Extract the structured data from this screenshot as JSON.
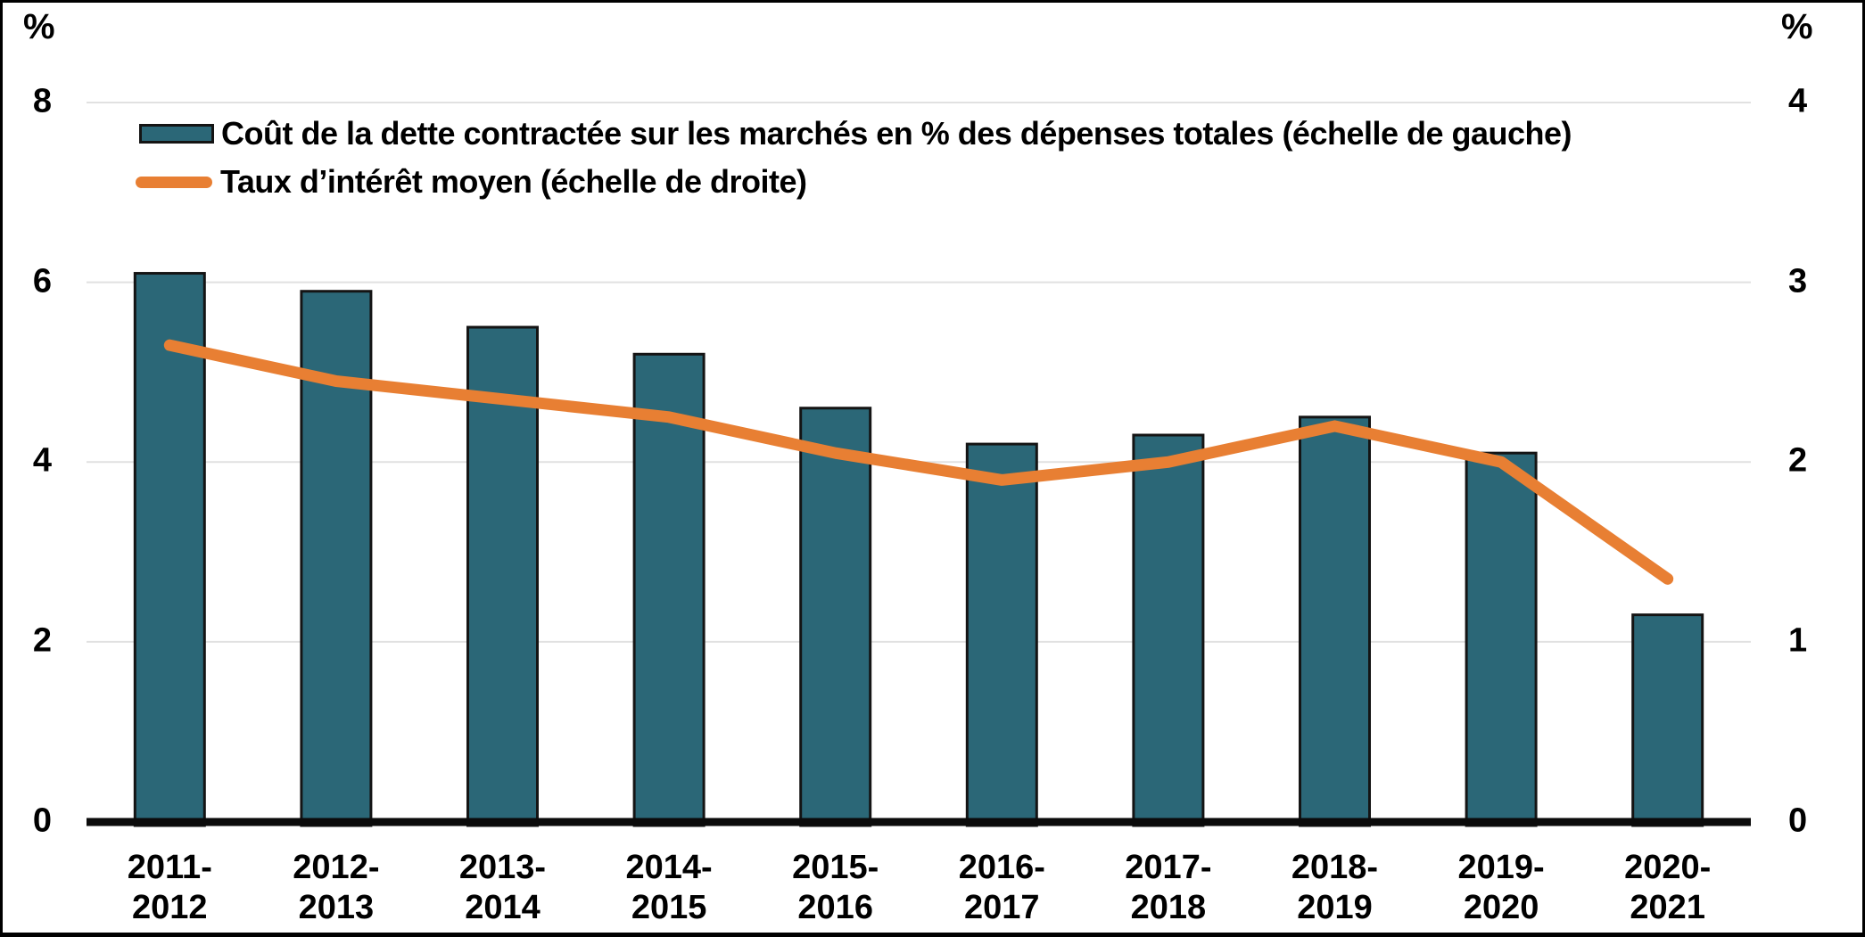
{
  "page": {
    "background": "#FFFFFF",
    "border_color": "#000000"
  },
  "chart": {
    "left_axis": {
      "unit": "%"
    },
    "right_axis": {
      "unit": "%"
    },
    "colors": {
      "bar_fill": "#2B6777",
      "bar_border": "#141414",
      "line": "#E87F33",
      "gridline": "#E1E1E1",
      "axis_line": "#0B0B0B",
      "text": "#000000"
    }
  },
  "chart_data": {
    "type": "combo-bar-line",
    "categories": [
      "2011-2012",
      "2012-2013",
      "2013-2014",
      "2014-2015",
      "2015-2016",
      "2016-2017",
      "2017-2018",
      "2018-2019",
      "2019-2020",
      "2020-2021"
    ],
    "series": [
      {
        "name": "Coût de la dette contractée sur les marchés en % des dépenses totales (échelle de gauche)",
        "type": "bar",
        "axis": "left",
        "values": [
          6.1,
          5.9,
          5.5,
          5.2,
          4.6,
          4.2,
          4.3,
          4.5,
          4.1,
          2.3
        ]
      },
      {
        "name": "Taux d’intérêt moyen (échelle de droite)",
        "type": "line",
        "axis": "right",
        "values": [
          2.65,
          2.45,
          2.35,
          2.25,
          2.05,
          1.9,
          2.0,
          2.2,
          2.0,
          1.35
        ]
      }
    ],
    "left_ylim": [
      0,
      8
    ],
    "right_ylim": [
      0,
      4
    ],
    "left_ticks": [
      8,
      6,
      4,
      2,
      0
    ],
    "right_ticks": [
      4,
      3,
      2,
      1,
      0
    ],
    "grid": true,
    "legend_position": "top-left-inside"
  }
}
